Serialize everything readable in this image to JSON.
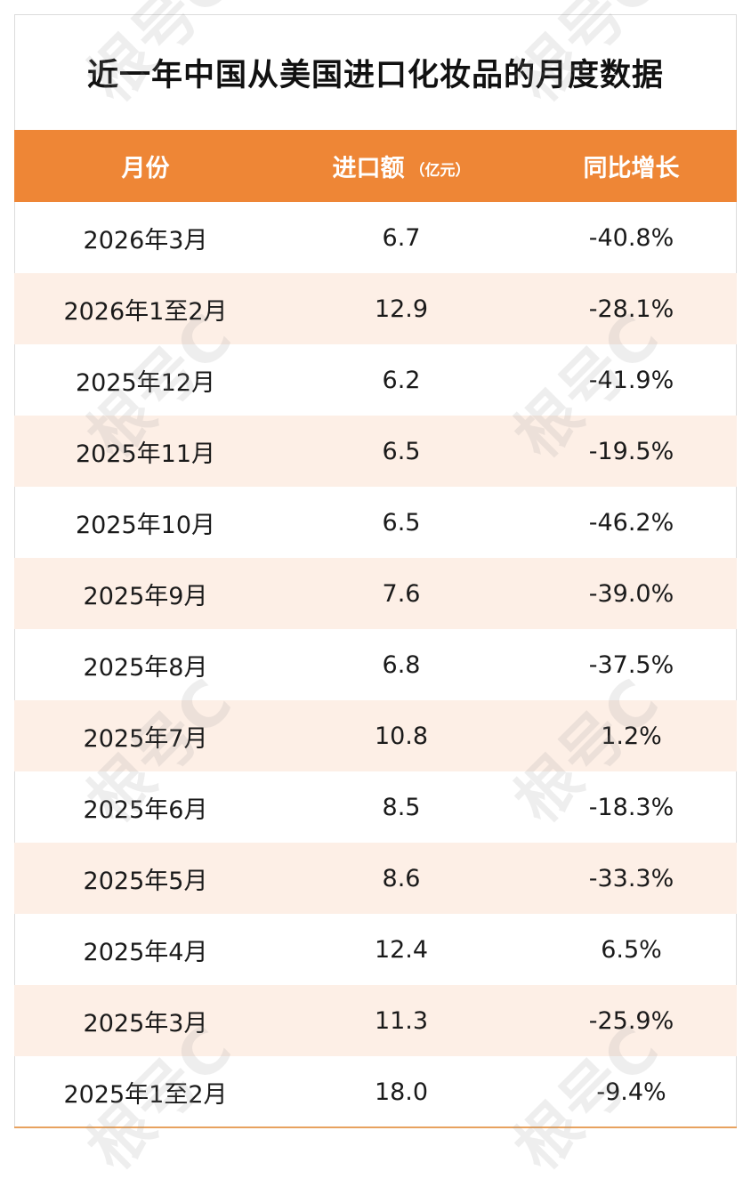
{
  "title": "近一年中国从美国进口化妆品的月度数据",
  "watermark": "根号C",
  "colors": {
    "header_bg": "#ee8636",
    "alt_row_bg": "#fdefe6",
    "rule": "#e8a25f"
  },
  "chart_data": {
    "type": "table",
    "title": "近一年中国从美国进口化妆品的月度数据",
    "columns": [
      "月份",
      "进口额",
      "同比增长"
    ],
    "column_unit": "（亿元）",
    "rows": [
      {
        "month": "2026年3月",
        "import": "6.7",
        "yoy": "-40.8%"
      },
      {
        "month": "2026年1至2月",
        "import": "12.9",
        "yoy": "-28.1%"
      },
      {
        "month": "2025年12月",
        "import": "6.2",
        "yoy": "-41.9%"
      },
      {
        "month": "2025年11月",
        "import": "6.5",
        "yoy": "-19.5%"
      },
      {
        "month": "2025年10月",
        "import": "6.5",
        "yoy": "-46.2%"
      },
      {
        "month": "2025年9月",
        "import": "7.6",
        "yoy": "-39.0%"
      },
      {
        "month": "2025年8月",
        "import": "6.8",
        "yoy": "-37.5%"
      },
      {
        "month": "2025年7月",
        "import": "10.8",
        "yoy": "1.2%"
      },
      {
        "month": "2025年6月",
        "import": "8.5",
        "yoy": "-18.3%"
      },
      {
        "month": "2025年5月",
        "import": "8.6",
        "yoy": "-33.3%"
      },
      {
        "month": "2025年4月",
        "import": "12.4",
        "yoy": "6.5%"
      },
      {
        "month": "2025年3月",
        "import": "11.3",
        "yoy": "-25.9%"
      },
      {
        "month": "2025年1至2月",
        "import": "18.0",
        "yoy": "-9.4%"
      }
    ]
  }
}
